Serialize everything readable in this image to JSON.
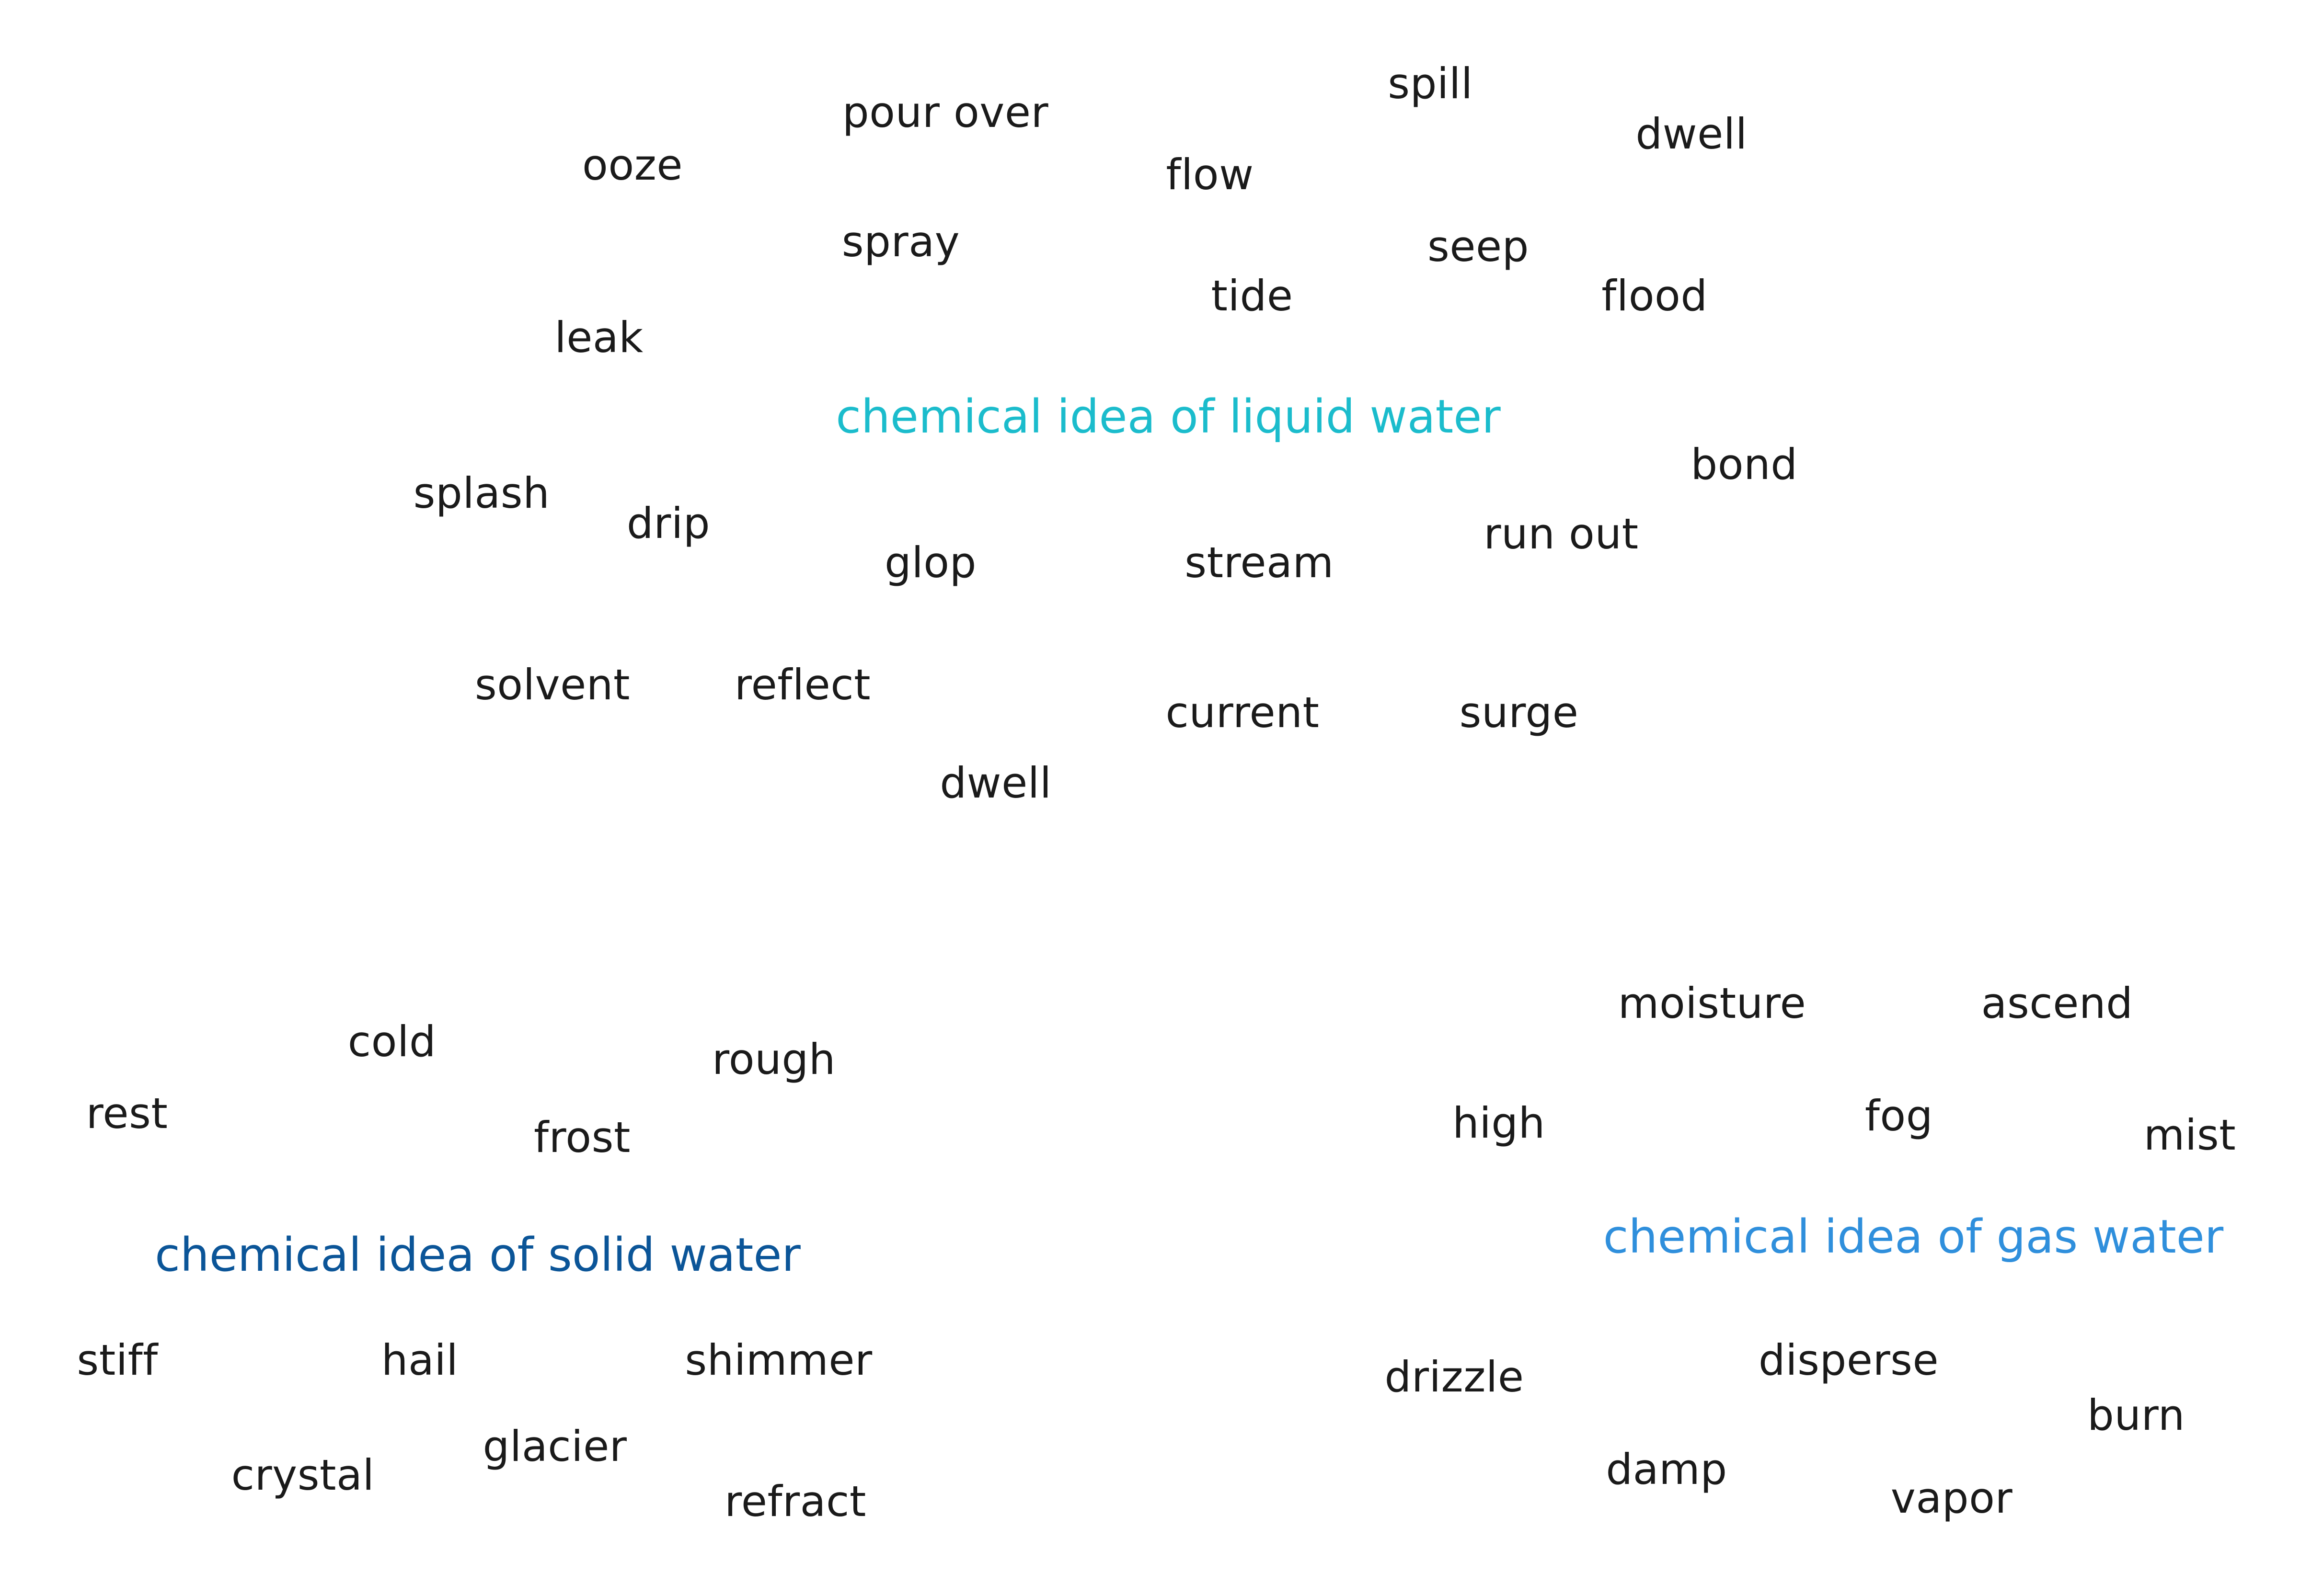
{
  "clusters": [
    {
      "id": "liquid",
      "label": "chemical idea of liquid water",
      "color": "#1bbccc",
      "words": [
        "ooze",
        "pour over",
        "spill",
        "flow",
        "dwell",
        "spray",
        "seep",
        "tide",
        "flood",
        "leak",
        "bond",
        "splash",
        "drip",
        "glop",
        "stream",
        "run out",
        "solvent",
        "reflect",
        "current",
        "surge",
        "dwell"
      ]
    },
    {
      "id": "solid",
      "label": "chemical idea of solid water",
      "color": "#0b5598",
      "words": [
        "cold",
        "rough",
        "rest",
        "frost",
        "stiff",
        "hail",
        "shimmer",
        "crystal",
        "glacier",
        "refract"
      ]
    },
    {
      "id": "gas",
      "label": "chemical idea of gas water",
      "color": "#2f8fdc",
      "words": [
        "moisture",
        "ascend",
        "high",
        "fog",
        "mist",
        "drizzle",
        "disperse",
        "burn",
        "damp",
        "vapor"
      ]
    }
  ],
  "word_color": "#1a1a1a"
}
